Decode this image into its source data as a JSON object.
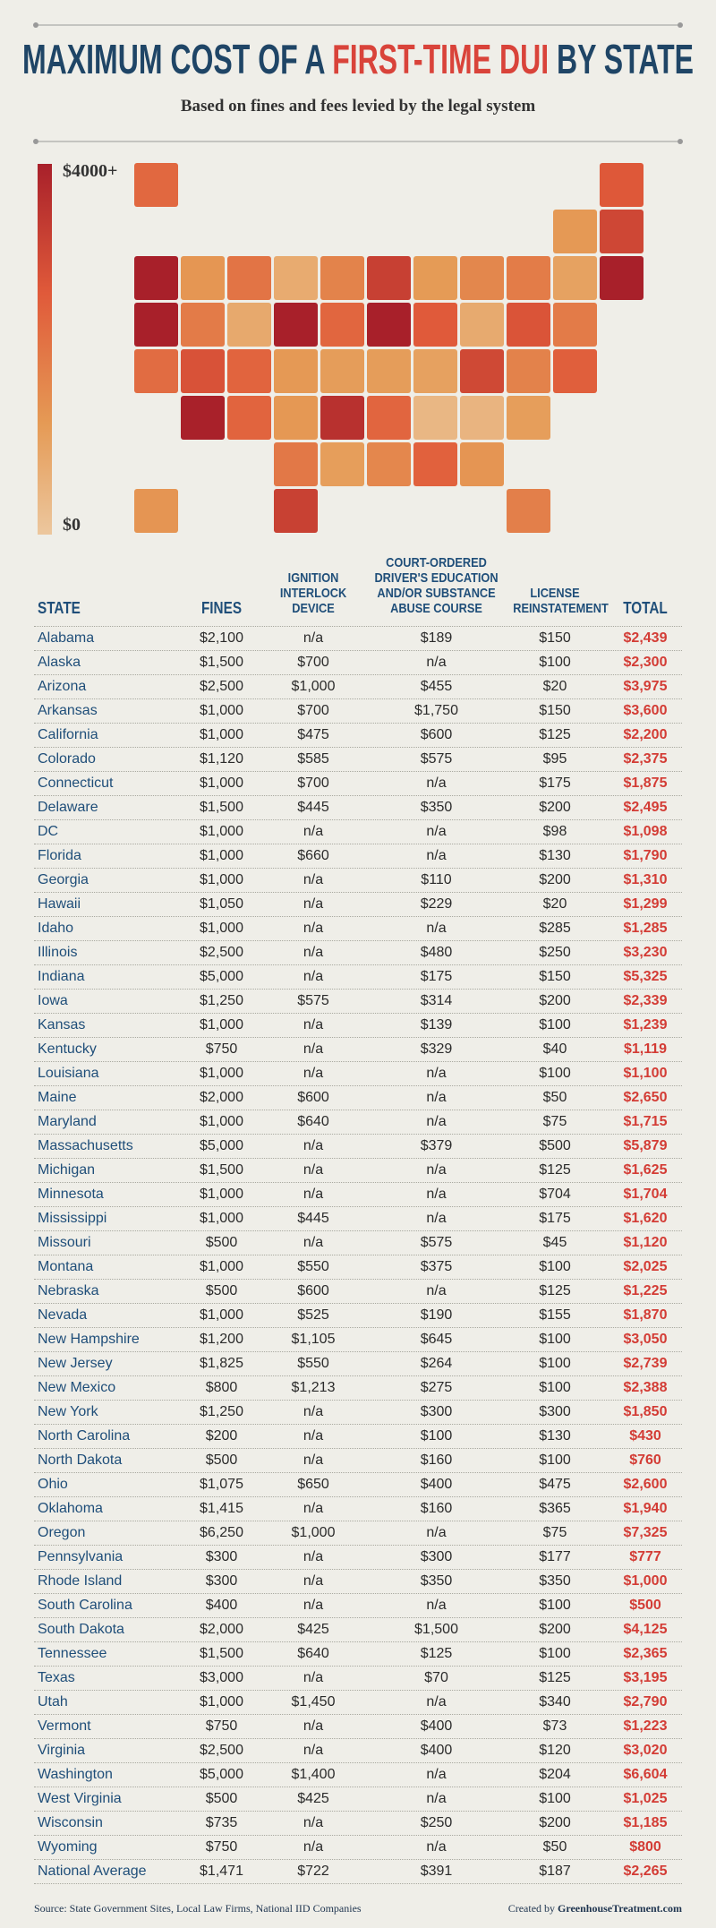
{
  "header": {
    "title": [
      {
        "text": "MAXIMUM COST OF A ",
        "color": "#1f4566"
      },
      {
        "text": "FIRST-TIME DUI",
        "color": "#d9433a"
      },
      {
        "text": " BY STATE",
        "color": "#1f4566"
      }
    ],
    "subtitle": "Based on fines and fees levied by the legal system"
  },
  "legend": {
    "max": {
      "value": 4000,
      "label": "$4000+"
    },
    "min": {
      "value": 0,
      "label": "$0"
    }
  },
  "table": {
    "columns": [
      {
        "lines": [
          "STATE"
        ]
      },
      {
        "lines": [
          "FINES"
        ]
      },
      {
        "lines": [
          "IGNITION",
          "INTERLOCK",
          "DEVICE"
        ]
      },
      {
        "lines": [
          "COURT-ORDERED",
          "DRIVER'S EDUCATION",
          "AND/OR SUBSTANCE",
          "ABUSE COURSE"
        ]
      },
      {
        "lines": [
          "LICENSE",
          "REINSTATEMENT"
        ]
      },
      {
        "lines": [
          "TOTAL"
        ]
      }
    ],
    "rows": [
      [
        "Alabama",
        "$2,100",
        "n/a",
        "$189",
        "$150",
        "$2,439"
      ],
      [
        "Alaska",
        "$1,500",
        "$700",
        "n/a",
        "$100",
        "$2,300"
      ],
      [
        "Arizona",
        "$2,500",
        "$1,000",
        "$455",
        "$20",
        "$3,975"
      ],
      [
        "Arkansas",
        "$1,000",
        "$700",
        "$1,750",
        "$150",
        "$3,600"
      ],
      [
        "California",
        "$1,000",
        "$475",
        "$600",
        "$125",
        "$2,200"
      ],
      [
        "Colorado",
        "$1,120",
        "$585",
        "$575",
        "$95",
        "$2,375"
      ],
      [
        "Connecticut",
        "$1,000",
        "$700",
        "n/a",
        "$175",
        "$1,875"
      ],
      [
        "Delaware",
        "$1,500",
        "$445",
        "$350",
        "$200",
        "$2,495"
      ],
      [
        "DC",
        "$1,000",
        "n/a",
        "n/a",
        "$98",
        "$1,098"
      ],
      [
        "Florida",
        "$1,000",
        "$660",
        "n/a",
        "$130",
        "$1,790"
      ],
      [
        "Georgia",
        "$1,000",
        "n/a",
        "$110",
        "$200",
        "$1,310"
      ],
      [
        "Hawaii",
        "$1,050",
        "n/a",
        "$229",
        "$20",
        "$1,299"
      ],
      [
        "Idaho",
        "$1,000",
        "n/a",
        "n/a",
        "$285",
        "$1,285"
      ],
      [
        "Illinois",
        "$2,500",
        "n/a",
        "$480",
        "$250",
        "$3,230"
      ],
      [
        "Indiana",
        "$5,000",
        "n/a",
        "$175",
        "$150",
        "$5,325"
      ],
      [
        "Iowa",
        "$1,250",
        "$575",
        "$314",
        "$200",
        "$2,339"
      ],
      [
        "Kansas",
        "$1,000",
        "n/a",
        "$139",
        "$100",
        "$1,239"
      ],
      [
        "Kentucky",
        "$750",
        "n/a",
        "$329",
        "$40",
        "$1,119"
      ],
      [
        "Louisiana",
        "$1,000",
        "n/a",
        "n/a",
        "$100",
        "$1,100"
      ],
      [
        "Maine",
        "$2,000",
        "$600",
        "n/a",
        "$50",
        "$2,650"
      ],
      [
        "Maryland",
        "$1,000",
        "$640",
        "n/a",
        "$75",
        "$1,715"
      ],
      [
        "Massachusetts",
        "$5,000",
        "n/a",
        "$379",
        "$500",
        "$5,879"
      ],
      [
        "Michigan",
        "$1,500",
        "n/a",
        "n/a",
        "$125",
        "$1,625"
      ],
      [
        "Minnesota",
        "$1,000",
        "n/a",
        "n/a",
        "$704",
        "$1,704"
      ],
      [
        "Mississippi",
        "$1,000",
        "$445",
        "n/a",
        "$175",
        "$1,620"
      ],
      [
        "Missouri",
        "$500",
        "n/a",
        "$575",
        "$45",
        "$1,120"
      ],
      [
        "Montana",
        "$1,000",
        "$550",
        "$375",
        "$100",
        "$2,025"
      ],
      [
        "Nebraska",
        "$500",
        "$600",
        "n/a",
        "$125",
        "$1,225"
      ],
      [
        "Nevada",
        "$1,000",
        "$525",
        "$190",
        "$155",
        "$1,870"
      ],
      [
        "New Hampshire",
        "$1,200",
        "$1,105",
        "$645",
        "$100",
        "$3,050"
      ],
      [
        "New Jersey",
        "$1,825",
        "$550",
        "$264",
        "$100",
        "$2,739"
      ],
      [
        "New Mexico",
        "$800",
        "$1,213",
        "$275",
        "$100",
        "$2,388"
      ],
      [
        "New York",
        "$1,250",
        "n/a",
        "$300",
        "$300",
        "$1,850"
      ],
      [
        "North Carolina",
        "$200",
        "n/a",
        "$100",
        "$130",
        "$430"
      ],
      [
        "North Dakota",
        "$500",
        "n/a",
        "$160",
        "$100",
        "$760"
      ],
      [
        "Ohio",
        "$1,075",
        "$650",
        "$400",
        "$475",
        "$2,600"
      ],
      [
        "Oklahoma",
        "$1,415",
        "n/a",
        "$160",
        "$365",
        "$1,940"
      ],
      [
        "Oregon",
        "$6,250",
        "$1,000",
        "n/a",
        "$75",
        "$7,325"
      ],
      [
        "Pennsylvania",
        "$300",
        "n/a",
        "$300",
        "$177",
        "$777"
      ],
      [
        "Rhode Island",
        "$300",
        "n/a",
        "$350",
        "$350",
        "$1,000"
      ],
      [
        "South Carolina",
        "$400",
        "n/a",
        "n/a",
        "$100",
        "$500"
      ],
      [
        "South Dakota",
        "$2,000",
        "$425",
        "$1,500",
        "$200",
        "$4,125"
      ],
      [
        "Tennessee",
        "$1,500",
        "$640",
        "$125",
        "$100",
        "$2,365"
      ],
      [
        "Texas",
        "$3,000",
        "n/a",
        "$70",
        "$125",
        "$3,195"
      ],
      [
        "Utah",
        "$1,000",
        "$1,450",
        "n/a",
        "$340",
        "$2,790"
      ],
      [
        "Vermont",
        "$750",
        "n/a",
        "$400",
        "$73",
        "$1,223"
      ],
      [
        "Virginia",
        "$2,500",
        "n/a",
        "$400",
        "$120",
        "$3,020"
      ],
      [
        "Washington",
        "$5,000",
        "$1,400",
        "n/a",
        "$204",
        "$6,604"
      ],
      [
        "West Virginia",
        "$500",
        "$425",
        "n/a",
        "$100",
        "$1,025"
      ],
      [
        "Wisconsin",
        "$735",
        "n/a",
        "$250",
        "$200",
        "$1,185"
      ],
      [
        "Wyoming",
        "$750",
        "n/a",
        "n/a",
        "$50",
        "$800"
      ],
      [
        "National Average",
        "$1,471",
        "$722",
        "$391",
        "$187",
        "$2,265"
      ]
    ]
  },
  "footer": {
    "source": "Source: State Government Sites, Local Law Firms, National IID Companies",
    "credit": [
      "Created by ",
      "GreenhouseTreatment.com"
    ]
  }
}
